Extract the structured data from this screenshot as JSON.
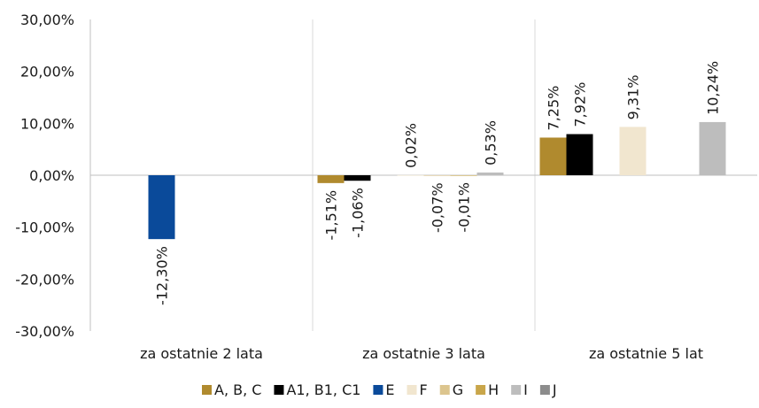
{
  "chart_data": {
    "type": "bar",
    "title": "",
    "xlabel": "",
    "ylabel": "",
    "ylim": [
      -30,
      30
    ],
    "yticks": [
      30,
      20,
      10,
      0,
      -10,
      -20,
      -30
    ],
    "ytick_labels": [
      "30,00%",
      "20,00%",
      "10,00%",
      "0,00%",
      "-10,00%",
      "-20,00%",
      "-30,00%"
    ],
    "categories": [
      "za ostatnie 2 lata",
      "za ostatnie 3 lata",
      "za ostatnie 5 lat"
    ],
    "legend_position": "bottom",
    "grid": false,
    "series": [
      {
        "name": "A, B, C",
        "color": "#b08a2e",
        "values": [
          null,
          -1.51,
          7.25
        ],
        "labels": [
          "",
          "-1,51%",
          "7,25%"
        ]
      },
      {
        "name": "A1, B1, C1",
        "color": "#000000",
        "values": [
          null,
          -1.06,
          7.92
        ],
        "labels": [
          "",
          "-1,06%",
          "7,92%"
        ]
      },
      {
        "name": "E",
        "color": "#0a4a9a",
        "values": [
          -12.3,
          null,
          null
        ],
        "labels": [
          "-12,30%",
          "",
          ""
        ]
      },
      {
        "name": "F",
        "color": "#f1e6cf",
        "values": [
          null,
          0.02,
          9.31
        ],
        "labels": [
          "",
          "0,02%",
          "9,31%"
        ]
      },
      {
        "name": "G",
        "color": "#dcc58e",
        "values": [
          null,
          -0.07,
          null
        ],
        "labels": [
          "",
          "-0,07%",
          ""
        ]
      },
      {
        "name": "H",
        "color": "#c9a64a",
        "values": [
          null,
          -0.01,
          null
        ],
        "labels": [
          "",
          "-0,01%",
          ""
        ]
      },
      {
        "name": "I",
        "color": "#bdbdbd",
        "values": [
          null,
          0.53,
          10.24
        ],
        "labels": [
          "",
          "0,53%",
          "10,24%"
        ]
      },
      {
        "name": "J",
        "color": "#8c8c8c",
        "values": [
          null,
          null,
          null
        ],
        "labels": [
          "",
          "",
          ""
        ]
      }
    ]
  }
}
